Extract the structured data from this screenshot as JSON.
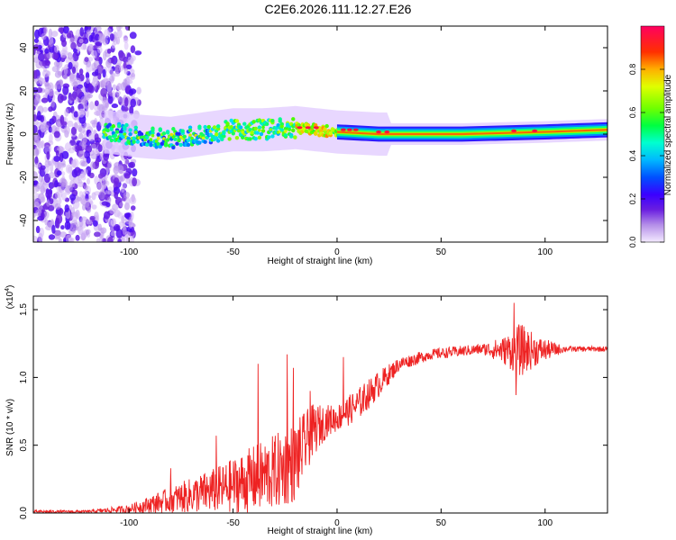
{
  "title": "C2E6.2026.111.12.27.E26",
  "chart_data": [
    {
      "type": "heatmap",
      "name": "spectrogram",
      "xlabel": "Height of straight line (km)",
      "ylabel": "Frequency (Hz)",
      "xlim": [
        -146,
        130
      ],
      "ylim": [
        -50,
        50
      ],
      "xticks": [
        -100,
        -50,
        0,
        50,
        100
      ],
      "xtick_labels": [
        "-100",
        "-50",
        "0",
        "50",
        "100"
      ],
      "yticks": [
        -40,
        -20,
        0,
        20,
        40
      ],
      "ytick_labels": [
        "-40",
        "-20",
        "0",
        "20",
        "40"
      ],
      "colorbar": {
        "label": "Normalized spectral amplitude",
        "range": [
          0,
          1
        ],
        "ticks": [
          0.0,
          0.2,
          0.4,
          0.6,
          0.8
        ],
        "tick_labels": [
          "0.0",
          "0.2",
          "0.4",
          "0.6",
          "0.8"
        ],
        "colors": [
          "#e6ccff",
          "#7a3fd6",
          "#4b00ff",
          "#0080ff",
          "#00ffff",
          "#00ff60",
          "#aaff00",
          "#ffd000",
          "#ff3000",
          "#ff0060"
        ]
      },
      "band_center_hz": [
        {
          "x": -110,
          "y": 1
        },
        {
          "x": -95,
          "y": -1
        },
        {
          "x": -80,
          "y": -2
        },
        {
          "x": -65,
          "y": 0
        },
        {
          "x": -50,
          "y": 2
        },
        {
          "x": -35,
          "y": 2
        },
        {
          "x": -20,
          "y": 3
        },
        {
          "x": -10,
          "y": 2
        },
        {
          "x": 0,
          "y": 1
        },
        {
          "x": 20,
          "y": 0
        },
        {
          "x": 60,
          "y": 0
        },
        {
          "x": 100,
          "y": 1
        },
        {
          "x": 130,
          "y": 2
        }
      ],
      "noise_region_x": [
        -146,
        -95
      ]
    },
    {
      "type": "line",
      "name": "snr",
      "xlabel": "Height of straight line (km)",
      "ylabel": "SNR (10 * v/v)",
      "y_multiplier": "(x10",
      "y_multiplier_exp": "4",
      "y_multiplier_close": ")",
      "xlim": [
        -146,
        130
      ],
      "ylim": [
        0,
        1.6
      ],
      "xticks": [
        -100,
        -50,
        0,
        50,
        100
      ],
      "xtick_labels": [
        "-100",
        "-50",
        "0",
        "50",
        "100"
      ],
      "yticks": [
        0.0,
        0.5,
        1.0,
        1.5
      ],
      "ytick_labels": [
        "0.0",
        "0.5",
        "1.0",
        "1.5"
      ],
      "color": "#ee2222",
      "envelope": [
        {
          "x": -146,
          "mean": 0.01,
          "amp": 0.01
        },
        {
          "x": -120,
          "mean": 0.01,
          "amp": 0.01
        },
        {
          "x": -100,
          "mean": 0.03,
          "amp": 0.03
        },
        {
          "x": -85,
          "mean": 0.08,
          "amp": 0.08
        },
        {
          "x": -70,
          "mean": 0.13,
          "amp": 0.13
        },
        {
          "x": -55,
          "mean": 0.18,
          "amp": 0.18
        },
        {
          "x": -40,
          "mean": 0.25,
          "amp": 0.25
        },
        {
          "x": -30,
          "mean": 0.3,
          "amp": 0.28
        },
        {
          "x": -20,
          "mean": 0.38,
          "amp": 0.3
        },
        {
          "x": -12,
          "mean": 0.6,
          "amp": 0.2
        },
        {
          "x": -5,
          "mean": 0.68,
          "amp": 0.12
        },
        {
          "x": 0,
          "mean": 0.7,
          "amp": 0.1
        },
        {
          "x": 10,
          "mean": 0.8,
          "amp": 0.12
        },
        {
          "x": 20,
          "mean": 0.95,
          "amp": 0.1
        },
        {
          "x": 30,
          "mean": 1.1,
          "amp": 0.05
        },
        {
          "x": 45,
          "mean": 1.17,
          "amp": 0.04
        },
        {
          "x": 70,
          "mean": 1.21,
          "amp": 0.04
        },
        {
          "x": 80,
          "mean": 1.2,
          "amp": 0.1
        },
        {
          "x": 88,
          "mean": 1.2,
          "amp": 0.2
        },
        {
          "x": 97,
          "mean": 1.2,
          "amp": 0.1
        },
        {
          "x": 110,
          "mean": 1.21,
          "amp": 0.02
        },
        {
          "x": 130,
          "mean": 1.21,
          "amp": 0.02
        }
      ],
      "spikes": [
        {
          "x": -80,
          "y": 0.33
        },
        {
          "x": -58,
          "y": 0.57
        },
        {
          "x": -38,
          "y": 1.1
        },
        {
          "x": -24,
          "y": 1.17
        },
        {
          "x": -21,
          "y": 1.07
        },
        {
          "x": -13,
          "y": 0.9
        },
        {
          "x": 3,
          "y": 1.15
        },
        {
          "x": 85,
          "y": 1.55
        },
        {
          "x": 86,
          "y": 0.87
        }
      ]
    }
  ]
}
